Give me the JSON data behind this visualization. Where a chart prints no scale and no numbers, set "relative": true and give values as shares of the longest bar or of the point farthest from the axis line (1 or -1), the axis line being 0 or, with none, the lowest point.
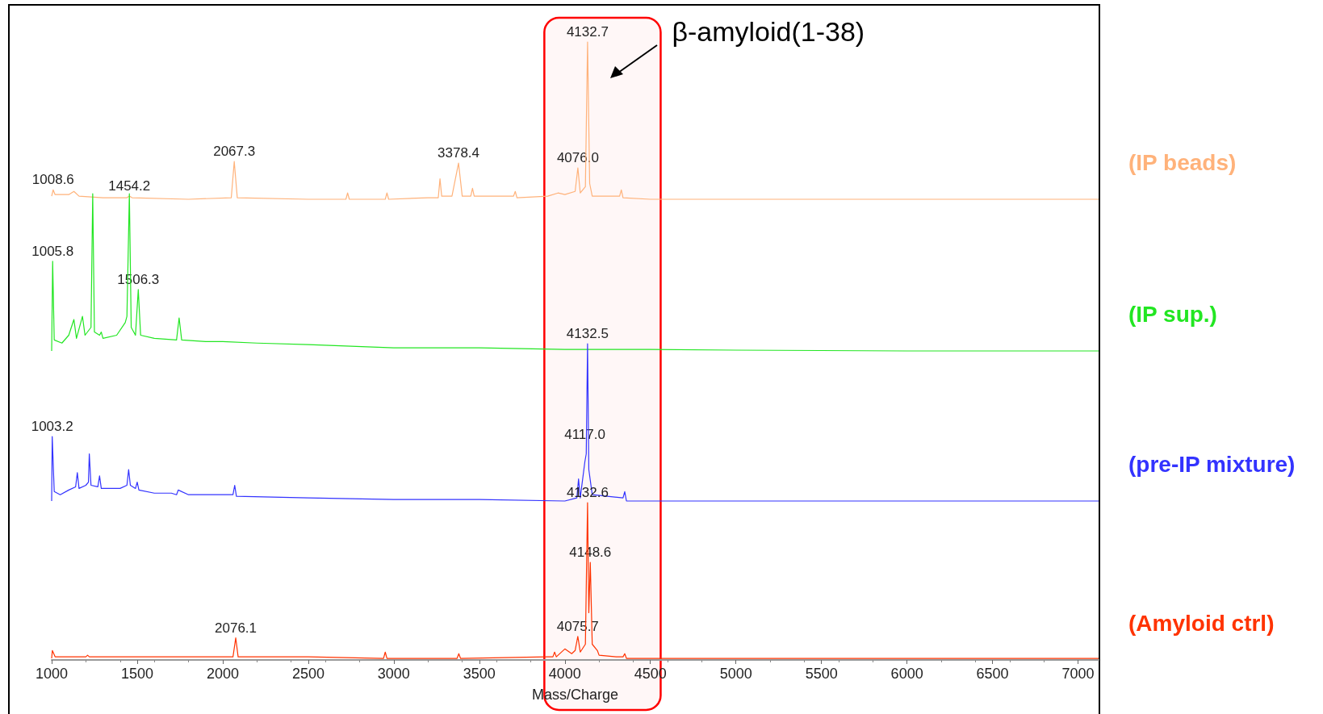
{
  "chart_data": [
    {
      "type": "line",
      "relative": true,
      "tick_labels": false,
      "xlim": [
        1000,
        7120
      ],
      "series": [
        {
          "name": "(IP beads)",
          "color": "#ffb27a",
          "x": [
            1000,
            1008.6,
            1020,
            1100,
            1130,
            1160,
            1300,
            1440,
            1454.2,
            1470,
            1800,
            2050,
            2067.3,
            2085,
            2500,
            2720,
            2730,
            2740,
            2950,
            2960,
            2970,
            3200,
            3260,
            3270,
            3280,
            3340,
            3378.4,
            3400,
            3450,
            3460,
            3470,
            3700,
            3710,
            3720,
            3900,
            3960,
            4000,
            4060,
            4076.0,
            4090,
            4120,
            4132.7,
            4145,
            4160,
            4200,
            4320,
            4330,
            4340,
            4500,
            5000,
            6000,
            7000,
            7120
          ],
          "values": [
            0.02,
            0.06,
            0.03,
            0.03,
            0.05,
            0.02,
            0.01,
            0.01,
            0.02,
            0.01,
            0.0,
            0.01,
            0.24,
            0.01,
            0.0,
            0.0,
            0.04,
            0.0,
            0.0,
            0.04,
            0.0,
            0.01,
            0.01,
            0.13,
            0.02,
            0.02,
            0.23,
            0.02,
            0.02,
            0.07,
            0.02,
            0.02,
            0.05,
            0.01,
            0.02,
            0.04,
            0.03,
            0.05,
            0.2,
            0.04,
            0.08,
            1.0,
            0.1,
            0.02,
            0.02,
            0.02,
            0.06,
            0.01,
            0.0,
            0.0,
            0.0,
            0.0,
            0.0
          ]
        }
      ],
      "bands": [
        {
          "axis": "x",
          "from": 3880,
          "to": 4560,
          "color": "#ff0000"
        }
      ],
      "annotations": [
        "β-amyloid(1-38)",
        {
          "text": "4132.7",
          "x": 4132.7,
          "y": 1.0
        },
        {
          "text": "4076.0",
          "x": 4076.0,
          "y": 0.2
        },
        {
          "text": "3378.4",
          "x": 3378.4,
          "y": 0.23
        },
        {
          "text": "2067.3",
          "x": 2067.3,
          "y": 0.24
        },
        {
          "text": "1454.2",
          "x": 1454.2,
          "y": 0.02
        },
        {
          "text": "1008.6",
          "x": 1008.6,
          "y": 0.06
        }
      ]
    },
    {
      "type": "line",
      "relative": true,
      "tick_labels": false,
      "xlim": [
        1000,
        7120
      ],
      "series": [
        {
          "name": "(IP sup.)",
          "color": "#22e622",
          "x": [
            1000,
            1005.8,
            1015,
            1060,
            1100,
            1130,
            1145,
            1180,
            1195,
            1230,
            1240,
            1250,
            1280,
            1290,
            1300,
            1380,
            1430,
            1440,
            1454.2,
            1465,
            1490,
            1506.3,
            1520,
            1600,
            1730,
            1745,
            1760,
            1900,
            2000,
            2200,
            2500,
            3000,
            3500,
            4000,
            4500,
            5000,
            6000,
            7000,
            7120
          ],
          "values": [
            0.0,
            0.57,
            0.07,
            0.05,
            0.1,
            0.2,
            0.08,
            0.22,
            0.1,
            0.15,
            1.0,
            0.12,
            0.1,
            0.12,
            0.08,
            0.1,
            0.18,
            0.22,
            1.0,
            0.15,
            0.1,
            0.39,
            0.1,
            0.08,
            0.07,
            0.21,
            0.07,
            0.06,
            0.06,
            0.05,
            0.04,
            0.02,
            0.02,
            0.01,
            0.01,
            0.005,
            0.0,
            0.0,
            0.0
          ]
        }
      ],
      "annotations": [
        {
          "text": "1005.8",
          "x": 1005.8,
          "y": 0.57
        },
        {
          "text": "1506.3",
          "x": 1506.3,
          "y": 0.39
        }
      ]
    },
    {
      "type": "line",
      "relative": true,
      "tick_labels": false,
      "xlim": [
        1000,
        7120
      ],
      "series": [
        {
          "name": "(pre-IP mixture)",
          "color": "#3333ff",
          "x": [
            1000,
            1003.2,
            1015,
            1050,
            1100,
            1140,
            1150,
            1160,
            1200,
            1215,
            1220,
            1230,
            1270,
            1280,
            1290,
            1400,
            1440,
            1450,
            1460,
            1490,
            1500,
            1510,
            1600,
            1700,
            1730,
            1740,
            1800,
            2000,
            2060,
            2070,
            2080,
            2500,
            3000,
            3500,
            4000,
            4070,
            4080,
            4090,
            4117.0,
            4125,
            4132.6,
            4140,
            4160,
            4340,
            4350,
            4360,
            4500,
            5000,
            6000,
            7000,
            7120
          ],
          "values": [
            0.0,
            0.41,
            0.06,
            0.04,
            0.07,
            0.09,
            0.18,
            0.08,
            0.1,
            0.12,
            0.3,
            0.1,
            0.09,
            0.16,
            0.08,
            0.08,
            0.1,
            0.2,
            0.1,
            0.08,
            0.12,
            0.07,
            0.05,
            0.05,
            0.04,
            0.07,
            0.04,
            0.04,
            0.04,
            0.1,
            0.03,
            0.02,
            0.01,
            0.01,
            0.0,
            0.02,
            0.14,
            0.02,
            0.25,
            0.3,
            1.0,
            0.2,
            0.04,
            0.02,
            0.06,
            0.0,
            0.0,
            0.0,
            0.0,
            0.0,
            0.0
          ]
        }
      ],
      "annotations": [
        {
          "text": "1003.2",
          "x": 1003.2,
          "y": 0.41
        },
        {
          "text": "4132.5",
          "x": 4132.5,
          "y": 1.0
        },
        {
          "text": "4117.0",
          "x": 4117.0,
          "y": 0.36
        }
      ]
    },
    {
      "type": "line",
      "relative": true,
      "tick_labels": "x",
      "xlim": [
        1000,
        7120
      ],
      "xticks": [
        1000,
        1500,
        2000,
        2500,
        3000,
        3500,
        4000,
        4500,
        5000,
        5500,
        6000,
        6500,
        7000
      ],
      "xlabel": "Mass/Charge",
      "series": [
        {
          "name": "(Amyloid ctrl)",
          "color": "#ff3300",
          "x": [
            1000,
            1004,
            1020,
            1200,
            1210,
            1220,
            1700,
            2060,
            2076.1,
            2090,
            2500,
            2940,
            2950,
            2960,
            3370,
            3380,
            3390,
            3900,
            3930,
            3940,
            3950,
            4000,
            4040,
            4060,
            4075.7,
            4090,
            4120,
            4132.6,
            4140,
            4148.6,
            4160,
            4190,
            4200,
            4300,
            4340,
            4350,
            4360,
            4500,
            5000,
            6000,
            7000,
            7120
          ],
          "values": [
            0.01,
            0.06,
            0.02,
            0.02,
            0.03,
            0.02,
            0.02,
            0.02,
            0.14,
            0.02,
            0.02,
            0.01,
            0.05,
            0.01,
            0.01,
            0.04,
            0.01,
            0.02,
            0.02,
            0.05,
            0.02,
            0.07,
            0.04,
            0.06,
            0.15,
            0.05,
            0.1,
            1.0,
            0.3,
            0.62,
            0.1,
            0.06,
            0.03,
            0.02,
            0.02,
            0.04,
            0.01,
            0.01,
            0.01,
            0.01,
            0.01,
            0.01
          ]
        }
      ],
      "annotations": [
        {
          "text": "4132.6",
          "x": 4132.6,
          "y": 1.0
        },
        {
          "text": "4148.6",
          "x": 4148.6,
          "y": 0.62
        },
        {
          "text": "4075.7",
          "x": 4075.7,
          "y": 0.15
        },
        {
          "text": "2076.1",
          "x": 2076.1,
          "y": 0.14
        }
      ]
    }
  ]
}
